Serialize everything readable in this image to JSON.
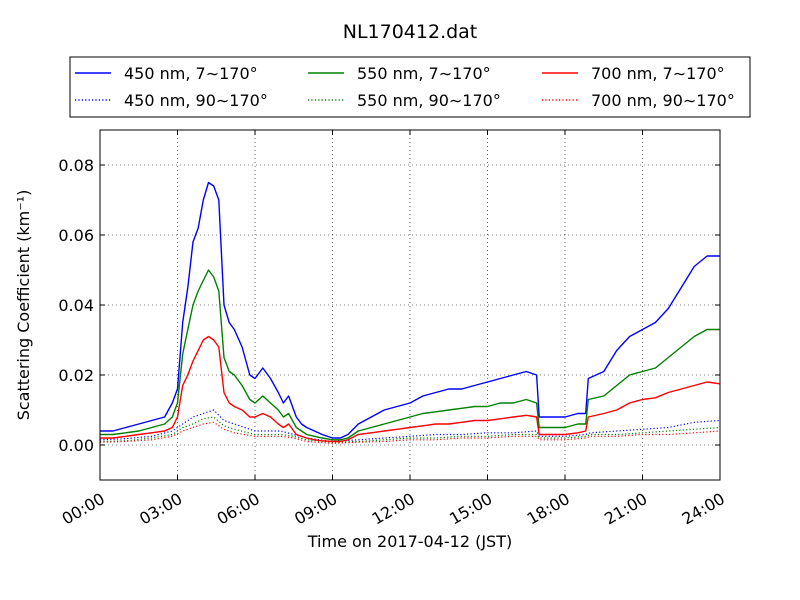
{
  "chart_data": {
    "type": "line",
    "title": "NL170412.dat",
    "xlabel": "Time on 2017-04-12 (JST)",
    "ylabel": "Scattering Coefficient (km⁻¹)",
    "xlim": [
      0,
      24
    ],
    "ylim": [
      -0.01,
      0.09
    ],
    "x_ticks": [
      "00:00",
      "03:00",
      "06:00",
      "09:00",
      "12:00",
      "15:00",
      "18:00",
      "21:00",
      "24:00"
    ],
    "y_ticks": [
      "0.00",
      "0.02",
      "0.04",
      "0.06",
      "0.08"
    ],
    "grid": true,
    "legend_position": "top",
    "series": [
      {
        "name": "450 nm, 7∼170°",
        "color": "#0000ff",
        "style": "solid",
        "x": [
          0,
          0.5,
          1,
          1.5,
          2,
          2.5,
          2.8,
          3,
          3.2,
          3.4,
          3.6,
          3.8,
          4,
          4.2,
          4.4,
          4.6,
          4.8,
          5,
          5.2,
          5.5,
          5.8,
          6,
          6.3,
          6.6,
          6.9,
          7.1,
          7.3,
          7.6,
          7.8,
          8,
          8.3,
          8.6,
          9,
          9.3,
          9.6,
          10,
          10.5,
          11,
          11.5,
          12,
          12.5,
          13,
          13.5,
          14,
          14.5,
          15,
          15.5,
          16,
          16.5,
          16.9,
          17,
          17.5,
          18,
          18.5,
          18.8,
          18.9,
          19.5,
          20,
          20.5,
          21,
          21.5,
          22,
          22.5,
          23,
          23.5,
          24
        ],
        "values": [
          0.004,
          0.004,
          0.005,
          0.006,
          0.007,
          0.008,
          0.012,
          0.016,
          0.035,
          0.045,
          0.058,
          0.062,
          0.07,
          0.075,
          0.074,
          0.07,
          0.04,
          0.035,
          0.033,
          0.028,
          0.02,
          0.019,
          0.022,
          0.019,
          0.015,
          0.012,
          0.014,
          0.008,
          0.006,
          0.005,
          0.004,
          0.003,
          0.002,
          0.002,
          0.003,
          0.006,
          0.008,
          0.01,
          0.011,
          0.012,
          0.014,
          0.015,
          0.016,
          0.016,
          0.017,
          0.018,
          0.019,
          0.02,
          0.021,
          0.02,
          0.008,
          0.008,
          0.008,
          0.009,
          0.009,
          0.019,
          0.021,
          0.027,
          0.031,
          0.033,
          0.035,
          0.039,
          0.045,
          0.051,
          0.054,
          0.054
        ]
      },
      {
        "name": "450 nm, 90∼170°",
        "color": "#0000ff",
        "style": "dotted",
        "x": [
          0,
          1,
          2,
          2.8,
          3.2,
          3.6,
          4,
          4.4,
          4.8,
          5.2,
          6,
          7,
          7.5,
          8,
          9,
          10,
          11,
          12,
          13,
          14,
          15,
          16,
          16.9,
          17,
          18,
          18.8,
          19,
          20,
          21,
          22,
          23,
          24
        ],
        "values": [
          0.0015,
          0.0018,
          0.0025,
          0.004,
          0.006,
          0.008,
          0.009,
          0.01,
          0.007,
          0.006,
          0.004,
          0.004,
          0.003,
          0.002,
          0.001,
          0.0015,
          0.002,
          0.0025,
          0.003,
          0.003,
          0.0035,
          0.0035,
          0.004,
          0.0025,
          0.0025,
          0.003,
          0.0035,
          0.004,
          0.0045,
          0.005,
          0.0065,
          0.007
        ]
      },
      {
        "name": "550 nm, 7∼170°",
        "color": "#008000",
        "style": "solid",
        "x": [
          0,
          0.5,
          1,
          1.5,
          2,
          2.5,
          2.8,
          3,
          3.2,
          3.4,
          3.6,
          3.8,
          4,
          4.2,
          4.4,
          4.6,
          4.8,
          5,
          5.2,
          5.5,
          5.8,
          6,
          6.3,
          6.6,
          6.9,
          7.1,
          7.3,
          7.6,
          7.8,
          8,
          8.3,
          8.6,
          9,
          9.3,
          9.6,
          10,
          10.5,
          11,
          11.5,
          12,
          12.5,
          13,
          13.5,
          14,
          14.5,
          15,
          15.5,
          16,
          16.5,
          16.9,
          17,
          17.5,
          18,
          18.5,
          18.8,
          18.9,
          19.5,
          20,
          20.5,
          21,
          21.5,
          22,
          22.5,
          23,
          23.5,
          24
        ],
        "values": [
          0.003,
          0.003,
          0.0035,
          0.004,
          0.005,
          0.006,
          0.008,
          0.012,
          0.026,
          0.033,
          0.04,
          0.044,
          0.047,
          0.05,
          0.048,
          0.044,
          0.025,
          0.021,
          0.02,
          0.017,
          0.013,
          0.012,
          0.014,
          0.012,
          0.01,
          0.008,
          0.009,
          0.005,
          0.004,
          0.003,
          0.0025,
          0.002,
          0.0015,
          0.0015,
          0.002,
          0.004,
          0.005,
          0.006,
          0.007,
          0.008,
          0.009,
          0.0095,
          0.01,
          0.0105,
          0.011,
          0.011,
          0.012,
          0.012,
          0.013,
          0.012,
          0.005,
          0.005,
          0.005,
          0.006,
          0.006,
          0.013,
          0.014,
          0.017,
          0.02,
          0.021,
          0.022,
          0.025,
          0.028,
          0.031,
          0.033,
          0.033
        ]
      },
      {
        "name": "550 nm, 90∼170°",
        "color": "#008000",
        "style": "dotted",
        "x": [
          0,
          1,
          2,
          2.8,
          3.2,
          3.6,
          4,
          4.4,
          4.8,
          5.2,
          6,
          7,
          7.5,
          8,
          9,
          10,
          11,
          12,
          13,
          14,
          15,
          16,
          16.9,
          17,
          18,
          18.8,
          19,
          20,
          21,
          22,
          23,
          24
        ],
        "values": [
          0.001,
          0.0012,
          0.002,
          0.003,
          0.005,
          0.006,
          0.0075,
          0.008,
          0.0055,
          0.0045,
          0.003,
          0.003,
          0.0025,
          0.0015,
          0.0008,
          0.001,
          0.0015,
          0.002,
          0.002,
          0.0025,
          0.0025,
          0.003,
          0.003,
          0.002,
          0.002,
          0.0025,
          0.003,
          0.003,
          0.0035,
          0.004,
          0.0045,
          0.005
        ]
      },
      {
        "name": "700 nm, 7∼170°",
        "color": "#ff0000",
        "style": "solid",
        "x": [
          0,
          0.5,
          1,
          1.5,
          2,
          2.5,
          2.8,
          3,
          3.2,
          3.4,
          3.6,
          3.8,
          4,
          4.2,
          4.4,
          4.6,
          4.8,
          5,
          5.2,
          5.5,
          5.8,
          6,
          6.3,
          6.6,
          6.9,
          7.1,
          7.3,
          7.6,
          7.8,
          8,
          8.3,
          8.6,
          9,
          9.3,
          9.6,
          10,
          10.5,
          11,
          11.5,
          12,
          12.5,
          13,
          13.5,
          14,
          14.5,
          15,
          15.5,
          16,
          16.5,
          16.9,
          17,
          17.5,
          18,
          18.5,
          18.8,
          18.9,
          19.5,
          20,
          20.5,
          21,
          21.5,
          22,
          22.5,
          23,
          23.5,
          24
        ],
        "values": [
          0.002,
          0.002,
          0.0025,
          0.003,
          0.0035,
          0.004,
          0.005,
          0.008,
          0.017,
          0.02,
          0.024,
          0.027,
          0.03,
          0.031,
          0.03,
          0.028,
          0.015,
          0.012,
          0.011,
          0.01,
          0.008,
          0.008,
          0.009,
          0.008,
          0.006,
          0.005,
          0.006,
          0.003,
          0.0025,
          0.002,
          0.0015,
          0.0012,
          0.001,
          0.001,
          0.0015,
          0.003,
          0.0035,
          0.004,
          0.0045,
          0.005,
          0.0055,
          0.006,
          0.006,
          0.0065,
          0.007,
          0.007,
          0.0075,
          0.008,
          0.0085,
          0.008,
          0.003,
          0.003,
          0.003,
          0.0035,
          0.004,
          0.008,
          0.009,
          0.01,
          0.012,
          0.013,
          0.0135,
          0.015,
          0.016,
          0.017,
          0.018,
          0.0175
        ]
      },
      {
        "name": "700 nm, 90∼170°",
        "color": "#ff0000",
        "style": "dotted",
        "x": [
          0,
          1,
          2,
          2.8,
          3.2,
          3.6,
          4,
          4.4,
          4.8,
          5.2,
          6,
          7,
          7.5,
          8,
          9,
          10,
          11,
          12,
          13,
          14,
          15,
          16,
          16.9,
          17,
          18,
          18.8,
          19,
          20,
          21,
          22,
          23,
          24
        ],
        "values": [
          0.0008,
          0.001,
          0.0015,
          0.0025,
          0.004,
          0.005,
          0.006,
          0.0065,
          0.0045,
          0.0035,
          0.0025,
          0.0025,
          0.002,
          0.001,
          0.0005,
          0.0008,
          0.001,
          0.0015,
          0.0015,
          0.002,
          0.002,
          0.0025,
          0.0025,
          0.0015,
          0.0015,
          0.002,
          0.0025,
          0.0025,
          0.003,
          0.003,
          0.0035,
          0.004
        ]
      }
    ]
  }
}
